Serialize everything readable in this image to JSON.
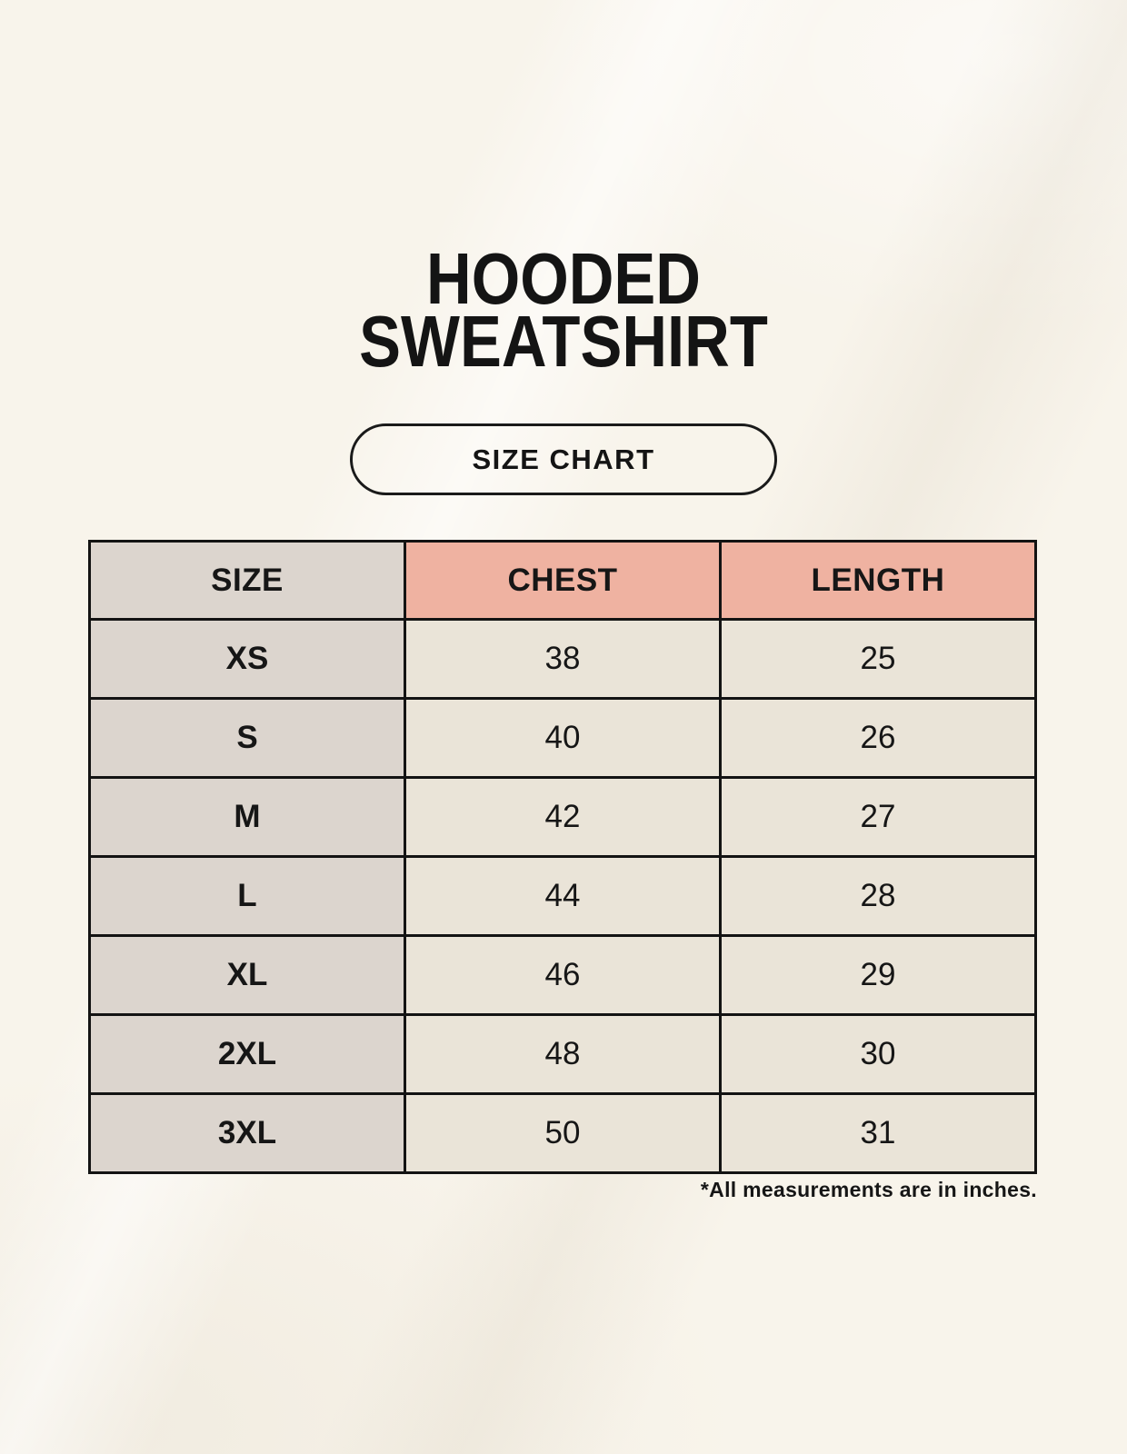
{
  "title": {
    "line1": "HOODED",
    "line2": "SWEATSHIRT"
  },
  "size_chart_button": {
    "label": "SIZE CHART"
  },
  "table": {
    "columns": [
      "SIZE",
      "CHEST",
      "LENGTH"
    ],
    "rows": [
      {
        "size": "XS",
        "chest": "38",
        "length": "25"
      },
      {
        "size": "S",
        "chest": "40",
        "length": "26"
      },
      {
        "size": "M",
        "chest": "42",
        "length": "27"
      },
      {
        "size": "L",
        "chest": "44",
        "length": "28"
      },
      {
        "size": "XL",
        "chest": "46",
        "length": "29"
      },
      {
        "size": "2XL",
        "chest": "48",
        "length": "30"
      },
      {
        "size": "3XL",
        "chest": "50",
        "length": "31"
      }
    ]
  },
  "footnote": "*All measurements are in inches.",
  "colors": {
    "background": "#F8F4EB",
    "header_accent_pink": "#EFB2A1",
    "size_column_gray": "#DCD5CE",
    "data_cell_cream": "#EAE4D8",
    "ink": "#161616"
  }
}
